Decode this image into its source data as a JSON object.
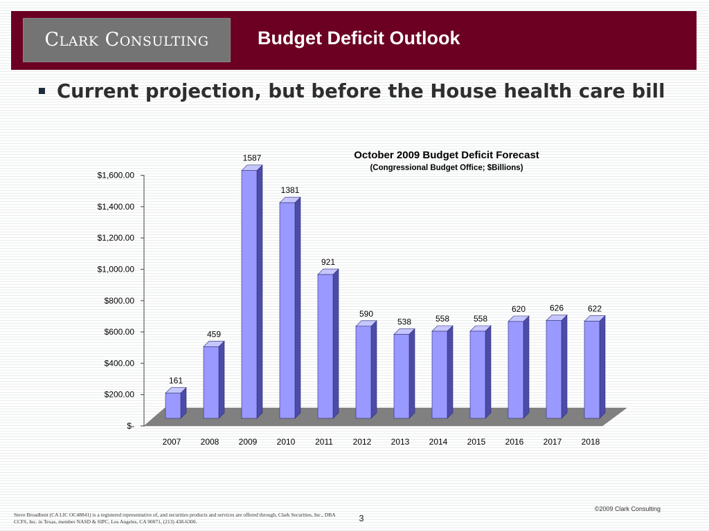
{
  "header": {
    "logo_text": "Clark Consulting",
    "title": "Budget Deficit Outlook",
    "colors": {
      "background": "#6b0022",
      "logo_box": "#747474"
    }
  },
  "bullet": {
    "text": "Current projection, but before the House health care bill"
  },
  "chart_data": {
    "type": "bar",
    "title": "October 2009 Budget Deficit Forecast",
    "subtitle": "(Congressional Budget Office; $Billions)",
    "categories": [
      "2007",
      "2008",
      "2009",
      "2010",
      "2011",
      "2012",
      "2013",
      "2014",
      "2015",
      "2016",
      "2017",
      "2018"
    ],
    "values": [
      161,
      459,
      1587,
      1381,
      921,
      590,
      538,
      558,
      558,
      620,
      626,
      622
    ],
    "data_labels": [
      "161",
      "459",
      "1587",
      "1381",
      "921",
      "590",
      "538",
      "558",
      "558",
      "620",
      "626",
      "622"
    ],
    "y_tick_labels": [
      "$-",
      "$200.00",
      "$400.00",
      "$600.00",
      "$800.00",
      "$1,000.00",
      "$1,200.00",
      "$1,400.00",
      "$1,600.00"
    ],
    "y_ticks": [
      0,
      200,
      400,
      600,
      800,
      1000,
      1200,
      1400,
      1600
    ],
    "ylim": [
      0,
      1600
    ],
    "grid": false,
    "style": "3d-column",
    "colors": {
      "bar_front": "#9999ff",
      "bar_side": "#4c4ca8",
      "bar_top": "#c6c6ff",
      "floor": "#808080"
    }
  },
  "footer": {
    "disclaimer": "Steve Broadbent (CA LIC OC48841) is a registered representative of, and securities products and services are offered through, Clark Securities, Inc., DBA CCFS, Inc. in Texas, member NASD & SIPC, Los Angeles, CA 90071, (213) 438-6300.",
    "page_number": "3",
    "copyright": "©2009 Clark Consulting"
  }
}
